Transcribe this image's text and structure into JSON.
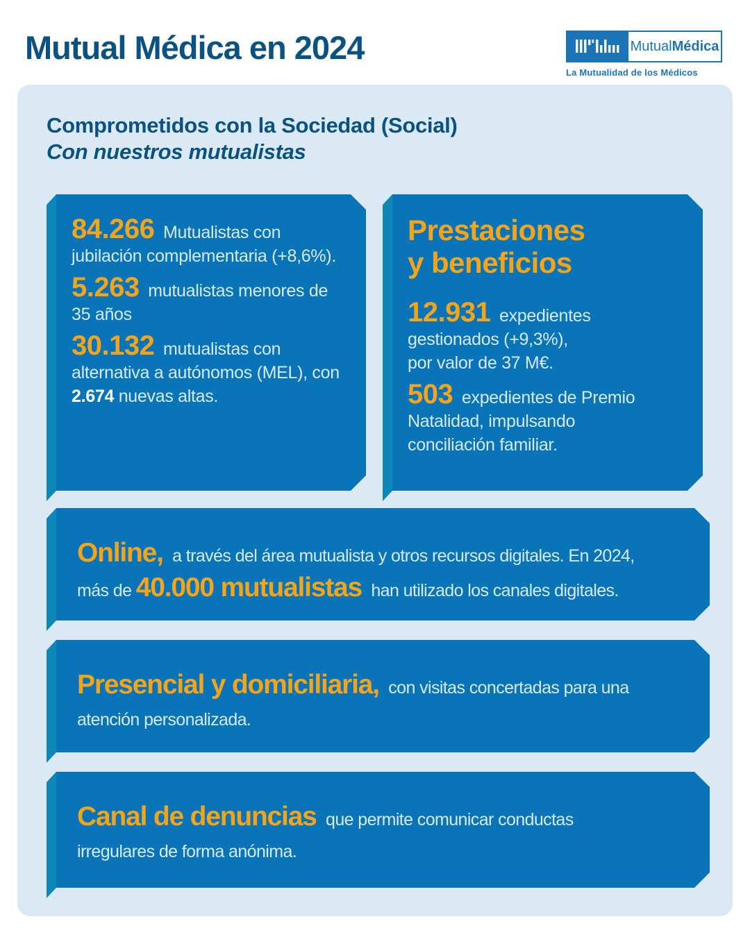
{
  "colors": {
    "card_blue": "#0a74b8",
    "card_side_teal": "#0d87b6",
    "panel_bg": "#dbe9f5",
    "accent_orange": "#f2a41c",
    "heading_blue": "#0a5282",
    "logo_blue": "#1b74b8",
    "body_text": "#d6eaf7"
  },
  "header": {
    "title": "Mutual Médica en 2024",
    "logo": {
      "mark_icon": "bar-pattern-mark",
      "name_regular": "Mutual",
      "name_bold": "Médica",
      "tagline": "La Mutualidad de los Médicos"
    }
  },
  "section": {
    "title_line1": "Comprometidos con la Sociedad (Social)",
    "title_line2": "Con nuestros mutualistas"
  },
  "cards": {
    "mutualistas": {
      "items": [
        [
          [
            {
              "t": "84.266",
              "s": "num"
            },
            {
              "t": " Mutualistas con",
              "s": "reg"
            }
          ],
          [
            {
              "t": "jubilación complementaria (+8,6%).",
              "s": "reg"
            }
          ]
        ],
        [
          [
            {
              "t": "5.263",
              "s": "num"
            },
            {
              "t": " mutualistas menores de",
              "s": "reg"
            }
          ],
          [
            {
              "t": "35 años",
              "s": "reg"
            }
          ]
        ],
        [
          [
            {
              "t": "30.132",
              "s": "num"
            },
            {
              "t": " mutualistas con",
              "s": "reg"
            }
          ],
          [
            {
              "t": "alternativa a autónomos (MEL), con",
              "s": "reg"
            }
          ],
          [
            {
              "t": "2.674",
              "s": "b"
            },
            {
              "t": " nuevas altas.",
              "s": "reg"
            }
          ]
        ]
      ]
    },
    "prestaciones": {
      "title_line1": "Prestaciones",
      "title_line2": "y beneficios",
      "items": [
        [
          [
            {
              "t": "12.931",
              "s": "num"
            },
            {
              "t": " expedientes",
              "s": "reg"
            }
          ],
          [
            {
              "t": "gestionados (+9,3%),",
              "s": "reg"
            }
          ],
          [
            {
              "t": "por valor de 37 M€.",
              "s": "reg"
            }
          ]
        ],
        [
          [
            {
              "t": "503",
              "s": "num"
            },
            {
              "t": " expedientes de Premio",
              "s": "reg"
            }
          ],
          [
            {
              "t": "Natalidad, impulsando",
              "s": "reg"
            }
          ],
          [
            {
              "t": "conciliación familiar.",
              "s": "reg"
            }
          ]
        ]
      ]
    },
    "online": {
      "lines": [
        [
          {
            "t": "Online,",
            "s": "lead"
          },
          {
            "t": " a través del área mutualista y otros recursos digitales. En 2024,",
            "s": "reg"
          }
        ],
        [
          {
            "t": "más de ",
            "s": "reg"
          },
          {
            "t": "40.000 mutualistas",
            "s": "lead"
          },
          {
            "t": " han utilizado los canales digitales.",
            "s": "reg"
          }
        ]
      ]
    },
    "presencial": {
      "lines": [
        [
          {
            "t": "Presencial y domiciliaria,",
            "s": "lead"
          },
          {
            "t": " con visitas concertadas para una",
            "s": "reg"
          }
        ],
        [
          {
            "t": "atención personalizada.",
            "s": "reg"
          }
        ]
      ]
    },
    "canal": {
      "lines": [
        [
          {
            "t": "Canal de denuncias",
            "s": "lead"
          },
          {
            "t": " que permite comunicar conductas",
            "s": "reg"
          }
        ],
        [
          {
            "t": "irregulares de forma anónima.",
            "s": "reg"
          }
        ]
      ]
    }
  }
}
